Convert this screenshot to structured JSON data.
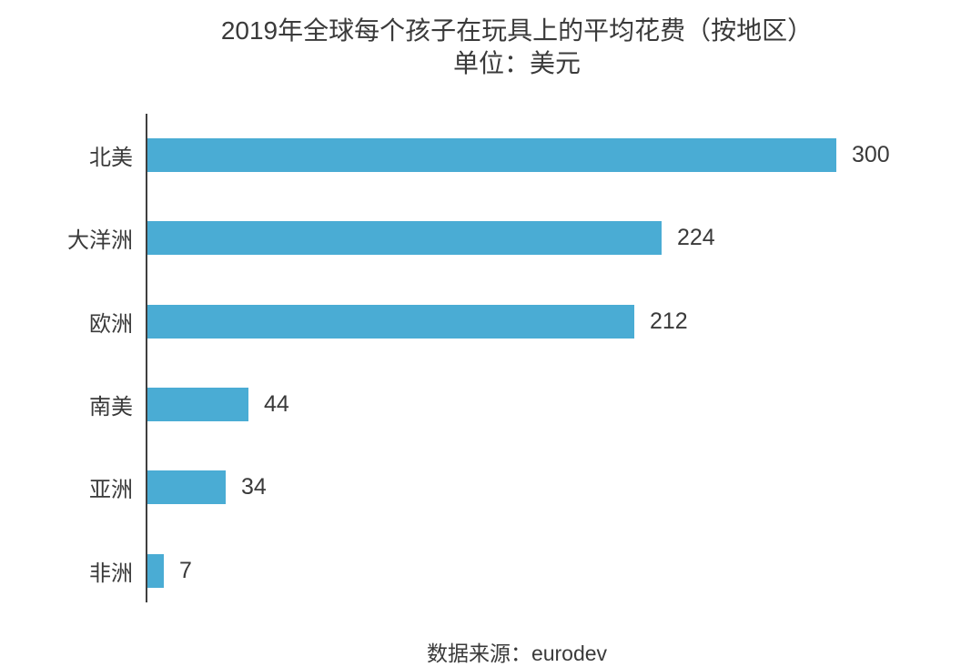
{
  "chart_data": {
    "type": "bar",
    "orientation": "horizontal",
    "title": "2019年全球每个孩子在玩具上的平均花费（按地区）",
    "subtitle": "单位：美元",
    "categories": [
      "北美",
      "大洋洲",
      "欧洲",
      "南美",
      "亚洲",
      "非洲"
    ],
    "values": [
      300,
      224,
      212,
      44,
      34,
      7
    ],
    "xlabel": "",
    "ylabel": "",
    "xlim": [
      0,
      300
    ],
    "grid": false,
    "legend": false,
    "value_labels": "end-of-bar",
    "bar_color": "#4AACD4",
    "axis_color": "#3f3f3f",
    "text_color": "#3a3a3a"
  },
  "source": {
    "label": "数据来源：eurodev"
  }
}
